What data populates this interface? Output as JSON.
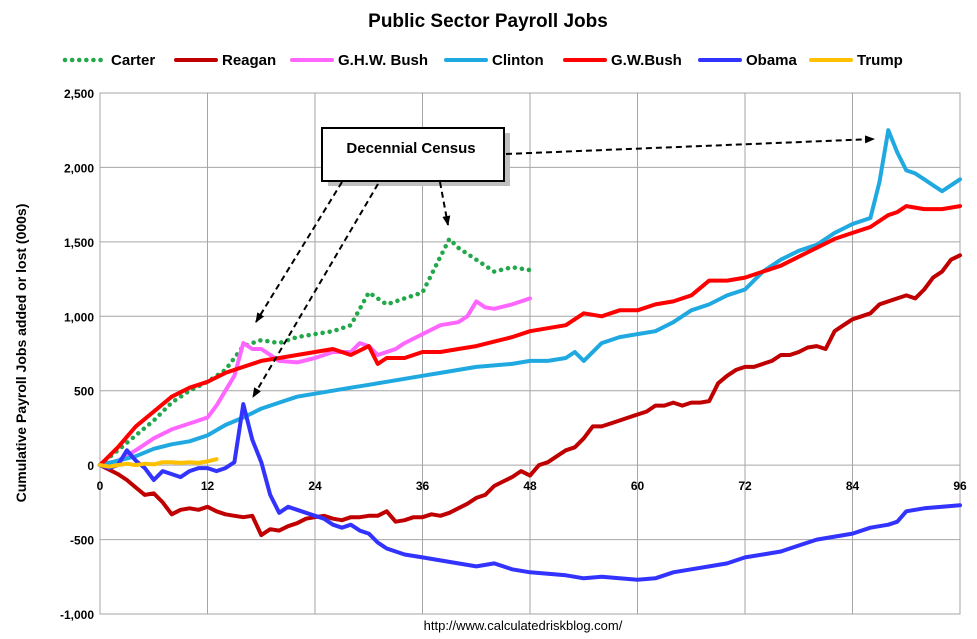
{
  "chart_data": {
    "type": "line",
    "title": "Public Sector Payroll Jobs",
    "ylabel": "Cumulative Payroll Jobs added or lost (000s)",
    "xlabel": "",
    "source": "http://www.calculatedriskblog.com/",
    "xlim": [
      0,
      96
    ],
    "ylim": [
      -1000,
      2500
    ],
    "xticks": [
      0,
      12,
      24,
      36,
      48,
      60,
      72,
      84,
      96
    ],
    "yticks": [
      -1000,
      -500,
      0,
      500,
      1000,
      1500,
      2000,
      2500
    ],
    "ytick_labels": [
      "-1,000",
      "-500",
      "0",
      "500",
      "1,000",
      "1,500",
      "2,000",
      "2,500"
    ],
    "grid": true,
    "legend_position": "top",
    "annotation": "Decennial Census",
    "series": [
      {
        "name": "Carter",
        "color": "#22a84a",
        "style": "dotted",
        "x": [
          0,
          2,
          4,
          6,
          8,
          10,
          12,
          14,
          16,
          18,
          20,
          22,
          24,
          26,
          28,
          30,
          32,
          34,
          36,
          38,
          39,
          40,
          42,
          44,
          46,
          48
        ],
        "values": [
          0,
          100,
          200,
          300,
          420,
          500,
          560,
          640,
          800,
          840,
          820,
          860,
          880,
          900,
          940,
          1160,
          1080,
          1120,
          1160,
          1400,
          1520,
          1460,
          1380,
          1300,
          1330,
          1310
        ]
      },
      {
        "name": "Reagan",
        "color": "#c00000",
        "style": "solid",
        "x": [
          0,
          1,
          2,
          3,
          4,
          5,
          6,
          7,
          8,
          9,
          10,
          11,
          12,
          13,
          14,
          15,
          16,
          17,
          18,
          19,
          20,
          21,
          22,
          23,
          24,
          25,
          26,
          27,
          28,
          29,
          30,
          31,
          32,
          33,
          34,
          35,
          36,
          37,
          38,
          39,
          40,
          41,
          42,
          43,
          44,
          45,
          46,
          47,
          48,
          49,
          50,
          51,
          52,
          53,
          54,
          55,
          56,
          57,
          58,
          59,
          60,
          61,
          62,
          63,
          64,
          65,
          66,
          67,
          68,
          69,
          70,
          71,
          72,
          73,
          74,
          75,
          76,
          77,
          78,
          79,
          80,
          81,
          82,
          83,
          84,
          85,
          86,
          87,
          88,
          89,
          90,
          91,
          92,
          93,
          94,
          95,
          96
        ],
        "values": [
          0,
          -30,
          -60,
          -100,
          -150,
          -200,
          -190,
          -250,
          -330,
          -300,
          -290,
          -300,
          -280,
          -310,
          -330,
          -340,
          -350,
          -340,
          -470,
          -430,
          -440,
          -410,
          -390,
          -360,
          -350,
          -340,
          -360,
          -370,
          -350,
          -350,
          -340,
          -340,
          -310,
          -380,
          -370,
          -350,
          -350,
          -330,
          -340,
          -320,
          -290,
          -260,
          -220,
          -200,
          -140,
          -110,
          -80,
          -40,
          -70,
          0,
          20,
          60,
          100,
          120,
          180,
          260,
          260,
          280,
          300,
          320,
          340,
          360,
          400,
          400,
          420,
          400,
          420,
          420,
          430,
          550,
          600,
          640,
          660,
          660,
          680,
          700,
          740,
          740,
          760,
          790,
          800,
          780,
          900,
          940,
          980,
          1000,
          1020,
          1080,
          1100,
          1120,
          1140,
          1120,
          1180,
          1260,
          1300,
          1380,
          1410
        ]
      },
      {
        "name": "G.H.W. Bush",
        "color": "#ff66ff",
        "style": "solid",
        "x": [
          0,
          2,
          4,
          6,
          8,
          10,
          12,
          13,
          14,
          15,
          16,
          17,
          18,
          20,
          22,
          24,
          26,
          28,
          29,
          30,
          31,
          32,
          33,
          34,
          36,
          38,
          40,
          41,
          42,
          43,
          44,
          46,
          48
        ],
        "values": [
          0,
          30,
          100,
          180,
          240,
          280,
          320,
          400,
          500,
          600,
          820,
          780,
          780,
          700,
          690,
          720,
          760,
          760,
          820,
          800,
          740,
          760,
          780,
          820,
          880,
          940,
          960,
          1000,
          1100,
          1060,
          1050,
          1080,
          1120
        ]
      },
      {
        "name": "Clinton",
        "color": "#1fa9e0",
        "style": "solid",
        "x": [
          0,
          2,
          4,
          6,
          8,
          10,
          12,
          14,
          16,
          18,
          20,
          22,
          24,
          26,
          28,
          30,
          32,
          34,
          36,
          38,
          40,
          42,
          44,
          46,
          48,
          50,
          52,
          53,
          54,
          56,
          58,
          60,
          62,
          64,
          66,
          68,
          70,
          72,
          74,
          76,
          78,
          80,
          82,
          84,
          86,
          87,
          88,
          89,
          90,
          91,
          92,
          93,
          94,
          95,
          96
        ],
        "values": [
          0,
          30,
          60,
          110,
          140,
          160,
          200,
          270,
          320,
          380,
          420,
          460,
          480,
          500,
          520,
          540,
          560,
          580,
          600,
          620,
          640,
          660,
          670,
          680,
          700,
          700,
          720,
          760,
          700,
          820,
          860,
          880,
          900,
          960,
          1040,
          1080,
          1140,
          1180,
          1300,
          1380,
          1440,
          1480,
          1560,
          1620,
          1660,
          1900,
          2250,
          2100,
          1980,
          1960,
          1920,
          1880,
          1840,
          1880,
          1920
        ]
      },
      {
        "name": "G.W.Bush",
        "color": "#ff0000",
        "style": "solid",
        "x": [
          0,
          2,
          4,
          6,
          8,
          10,
          12,
          14,
          16,
          18,
          20,
          22,
          24,
          26,
          28,
          30,
          31,
          32,
          34,
          36,
          38,
          40,
          42,
          44,
          46,
          48,
          50,
          52,
          54,
          56,
          58,
          60,
          62,
          64,
          66,
          68,
          70,
          72,
          74,
          76,
          78,
          80,
          82,
          84,
          86,
          88,
          89,
          90,
          92,
          94,
          96
        ],
        "values": [
          0,
          120,
          260,
          360,
          460,
          520,
          560,
          620,
          660,
          700,
          720,
          740,
          760,
          780,
          740,
          800,
          680,
          720,
          720,
          760,
          760,
          780,
          800,
          830,
          860,
          900,
          920,
          940,
          1020,
          1000,
          1040,
          1040,
          1080,
          1100,
          1140,
          1240,
          1240,
          1260,
          1300,
          1340,
          1400,
          1460,
          1520,
          1560,
          1600,
          1680,
          1700,
          1740,
          1720,
          1720,
          1740
        ]
      },
      {
        "name": "Obama",
        "color": "#3333ff",
        "style": "solid",
        "x": [
          0,
          1,
          2,
          3,
          4,
          5,
          6,
          7,
          8,
          9,
          10,
          11,
          12,
          13,
          14,
          15,
          16,
          17,
          18,
          19,
          20,
          21,
          22,
          23,
          24,
          25,
          26,
          27,
          28,
          29,
          30,
          31,
          32,
          34,
          36,
          38,
          40,
          42,
          44,
          46,
          48,
          50,
          52,
          54,
          56,
          58,
          60,
          62,
          64,
          66,
          68,
          70,
          72,
          74,
          76,
          78,
          80,
          82,
          84,
          86,
          88,
          89,
          90,
          91,
          92,
          94,
          96
        ],
        "values": [
          0,
          -20,
          0,
          100,
          30,
          -20,
          -100,
          -40,
          -60,
          -80,
          -40,
          -20,
          -20,
          -40,
          -20,
          20,
          410,
          170,
          20,
          -200,
          -320,
          -280,
          -300,
          -320,
          -340,
          -360,
          -400,
          -420,
          -400,
          -440,
          -460,
          -520,
          -560,
          -600,
          -620,
          -640,
          -660,
          -680,
          -660,
          -700,
          -720,
          -730,
          -740,
          -760,
          -750,
          -760,
          -770,
          -760,
          -720,
          -700,
          -680,
          -660,
          -620,
          -600,
          -580,
          -540,
          -500,
          -480,
          -460,
          -420,
          -400,
          -380,
          -310,
          -300,
          -290,
          -280,
          -270
        ]
      },
      {
        "name": "Trump",
        "color": "#ffc000",
        "style": "solid",
        "x": [
          0,
          1,
          2,
          3,
          4,
          5,
          6,
          7,
          8,
          9,
          10,
          11,
          12,
          13
        ],
        "values": [
          0,
          -10,
          0,
          10,
          0,
          10,
          5,
          20,
          20,
          15,
          20,
          15,
          25,
          40
        ]
      }
    ]
  }
}
